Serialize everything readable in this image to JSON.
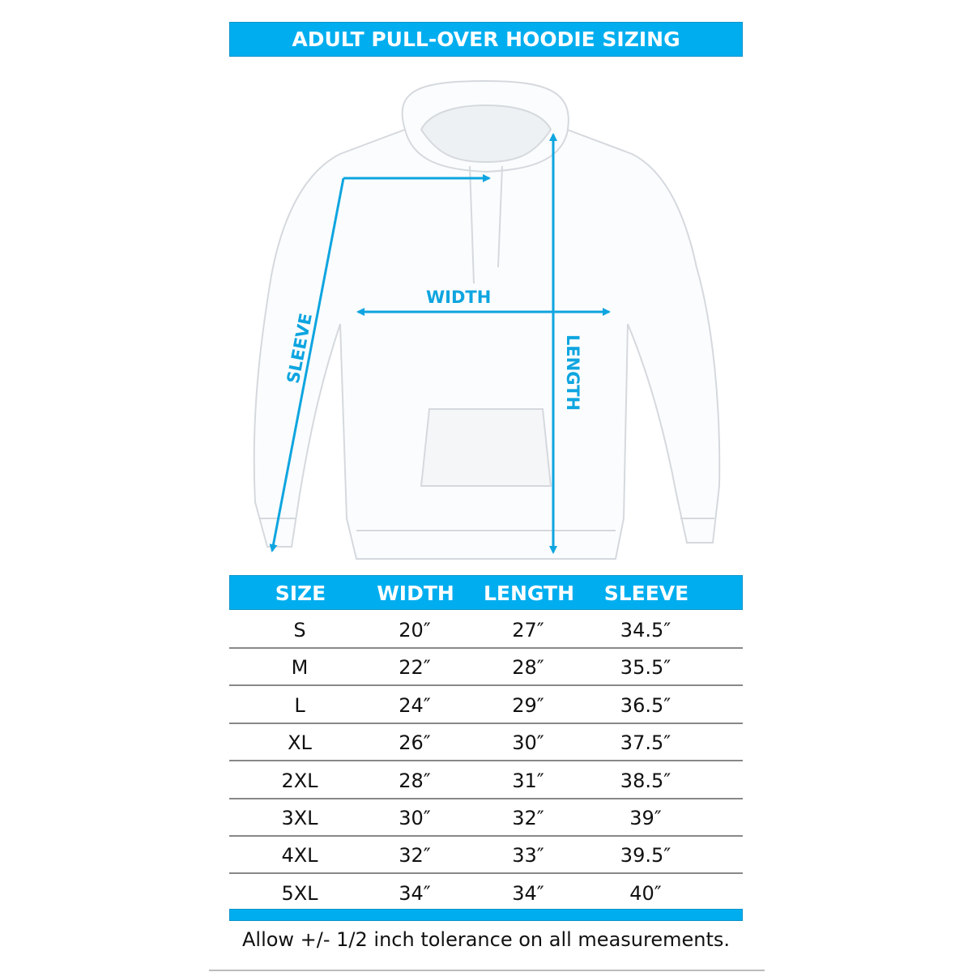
{
  "title": "ADULT PULL-OVER HOODIE SIZING",
  "diagram": {
    "width_label": "WIDTH",
    "length_label": "LENGTH",
    "sleeve_label": "SLEEVE",
    "arrow_color": "#0ea5e0"
  },
  "table": {
    "headers": [
      "SIZE",
      "WIDTH",
      "LENGTH",
      "SLEEVE"
    ],
    "rows": [
      [
        "S",
        "20″",
        "27″",
        "34.5″"
      ],
      [
        "M",
        "22″",
        "28″",
        "35.5″"
      ],
      [
        "L",
        "24″",
        "29″",
        "36.5″"
      ],
      [
        "XL",
        "26″",
        "30″",
        "37.5″"
      ],
      [
        "2XL",
        "28″",
        "31″",
        "38.5″"
      ],
      [
        "3XL",
        "30″",
        "32″",
        "39″"
      ],
      [
        "4XL",
        "32″",
        "33″",
        "39.5″"
      ],
      [
        "5XL",
        "34″",
        "34″",
        "40″"
      ]
    ]
  },
  "note": "Allow +/- 1/2 inch tolerance on all measurements.",
  "colors": {
    "accent": "#00aeef"
  }
}
